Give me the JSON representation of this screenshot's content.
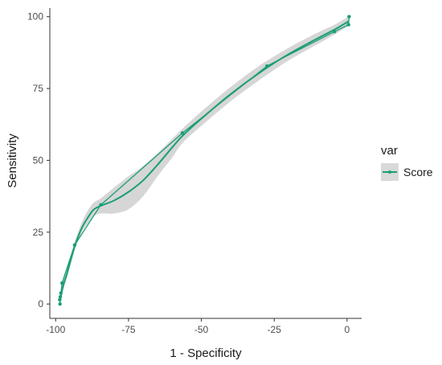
{
  "chart_data": {
    "type": "line",
    "xlabel": "1 - Specificity",
    "ylabel": "Sensitivity",
    "xlim": [
      -102,
      5
    ],
    "ylim": [
      -5,
      103
    ],
    "xticks": [
      -100,
      -75,
      -50,
      -25,
      0
    ],
    "yticks": [
      0,
      25,
      50,
      75,
      100
    ],
    "grid": false,
    "legend": {
      "title": "var",
      "position": "right"
    },
    "series": [
      {
        "name": "Score",
        "color": "#1b9e77",
        "points": [
          {
            "x": -98.5,
            "y": 0.0
          },
          {
            "x": -98.6,
            "y": 1.5
          },
          {
            "x": -98.4,
            "y": 2.5
          },
          {
            "x": -98.2,
            "y": 3.8
          },
          {
            "x": -97.8,
            "y": 7.3
          },
          {
            "x": -93.5,
            "y": 20.5
          },
          {
            "x": -84.5,
            "y": 34.5
          },
          {
            "x": -56.5,
            "y": 59.5
          },
          {
            "x": -27.5,
            "y": 82.8
          },
          {
            "x": -4.3,
            "y": 94.8
          },
          {
            "x": 0.5,
            "y": 97.2
          },
          {
            "x": 0.7,
            "y": 100.0
          }
        ],
        "smooth": [
          {
            "x": -98.5,
            "y": 1.2,
            "lo": 0.0,
            "hi": 2.4
          },
          {
            "x": -97.5,
            "y": 6.0,
            "lo": 4.5,
            "hi": 7.5
          },
          {
            "x": -96.0,
            "y": 11.0,
            "lo": 9.5,
            "hi": 12.5
          },
          {
            "x": -94.5,
            "y": 16.5,
            "lo": 15.0,
            "hi": 18.0
          },
          {
            "x": -93.0,
            "y": 21.5,
            "lo": 20.0,
            "hi": 23.0
          },
          {
            "x": -91.0,
            "y": 26.5,
            "lo": 25.0,
            "hi": 28.5
          },
          {
            "x": -89.0,
            "y": 30.0,
            "lo": 28.0,
            "hi": 32.5
          },
          {
            "x": -87.0,
            "y": 32.8,
            "lo": 30.5,
            "hi": 35.2
          },
          {
            "x": -84.5,
            "y": 34.2,
            "lo": 31.5,
            "hi": 36.8
          },
          {
            "x": -80.0,
            "y": 36.0,
            "lo": 31.5,
            "hi": 40.5
          },
          {
            "x": -75.0,
            "y": 39.0,
            "lo": 33.0,
            "hi": 44.5
          },
          {
            "x": -70.0,
            "y": 43.0,
            "lo": 37.5,
            "hi": 48.0
          },
          {
            "x": -65.0,
            "y": 48.5,
            "lo": 44.5,
            "hi": 52.5
          },
          {
            "x": -60.0,
            "y": 54.5,
            "lo": 51.0,
            "hi": 57.5
          },
          {
            "x": -56.5,
            "y": 58.5,
            "lo": 56.0,
            "hi": 61.0
          },
          {
            "x": -50.0,
            "y": 64.5,
            "lo": 62.0,
            "hi": 67.0
          },
          {
            "x": -40.0,
            "y": 73.0,
            "lo": 70.5,
            "hi": 75.5
          },
          {
            "x": -30.0,
            "y": 80.5,
            "lo": 78.0,
            "hi": 83.0
          },
          {
            "x": -20.0,
            "y": 87.0,
            "lo": 84.8,
            "hi": 89.2
          },
          {
            "x": -10.0,
            "y": 92.5,
            "lo": 90.5,
            "hi": 94.5
          },
          {
            "x": -4.3,
            "y": 95.5,
            "lo": 93.8,
            "hi": 97.2
          },
          {
            "x": 0.7,
            "y": 98.5,
            "lo": 96.8,
            "hi": 100.2
          }
        ]
      }
    ]
  }
}
